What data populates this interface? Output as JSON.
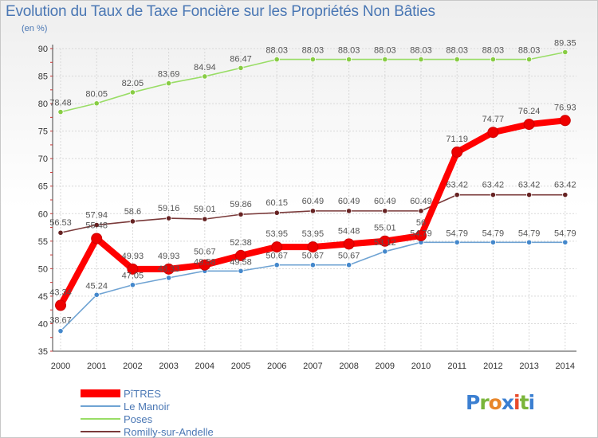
{
  "title": "Evolution du Taux de Taxe Foncière sur les Propriétés Non Bâties",
  "unit": "(en %)",
  "logo": "Proxiti",
  "chart_data": {
    "type": "line",
    "categories": [
      "2000",
      "2001",
      "2002",
      "2003",
      "2004",
      "2005",
      "2006",
      "2007",
      "2008",
      "2009",
      "2010",
      "2011",
      "2012",
      "2013",
      "2014"
    ],
    "ylim": [
      35,
      90
    ],
    "yticks": [
      35,
      40,
      45,
      50,
      55,
      60,
      65,
      70,
      75,
      80,
      85,
      90
    ],
    "series": [
      {
        "name": "Poses",
        "color": "#99dd66",
        "dot": "#88cc44",
        "values": [
          78.48,
          80.05,
          82.05,
          83.69,
          84.94,
          86.47,
          88.03,
          88.03,
          88.03,
          88.03,
          88.03,
          88.03,
          88.03,
          88.03,
          89.35
        ],
        "labels": [
          "78.48",
          "80.05",
          "82.05",
          "83.69",
          "84.94",
          "86.47",
          "88.03",
          "88.03",
          "88.03",
          "88.03",
          "88.03",
          "88.03",
          "88.03",
          "88.03",
          "89.35"
        ]
      },
      {
        "name": "Romilly-sur-Andelle",
        "color": "#7a3a3a",
        "dot": "#662222",
        "values": [
          56.53,
          57.94,
          58.6,
          59.16,
          59.01,
          59.86,
          60.15,
          60.49,
          60.49,
          60.49,
          60.49,
          63.42,
          63.42,
          63.42,
          63.42
        ],
        "labels": [
          "56.53",
          "57.94",
          "58.6",
          "59.16",
          "59.01",
          "59.86",
          "60.15",
          "60.49",
          "60.49",
          "60.49",
          "60.49",
          "63.42",
          "63.42",
          "63.42",
          "63.42"
        ]
      },
      {
        "name": "Le Manoir",
        "color": "#6fa3d3",
        "dot": "#4488cc",
        "values": [
          38.67,
          45.24,
          47.05,
          48.33,
          49.58,
          49.58,
          50.67,
          50.67,
          50.67,
          53.12,
          54.79,
          54.79,
          54.79,
          54.79,
          54.79
        ],
        "labels": [
          "38.67",
          "45.24",
          "47.05",
          "48.33",
          "49.58",
          "49.58",
          "50.67",
          "50.67",
          "50.67",
          "53.12",
          "54.79",
          "54.79",
          "54.79",
          "54.79",
          "54.79"
        ]
      },
      {
        "name": "PîTRES",
        "color": "#ff0000",
        "dot": "#ee0000",
        "values": [
          43.34,
          55.48,
          49.93,
          49.93,
          50.67,
          52.38,
          53.95,
          53.95,
          54.48,
          55.01,
          56.0,
          71.19,
          74.77,
          76.24,
          76.93
        ],
        "labels": [
          "43.34",
          "55.48",
          "49.93",
          "49.93",
          "50.67",
          "52.38",
          "53.95",
          "53.95",
          "54.48",
          "55.01",
          "56",
          "71.19",
          "74.77",
          "76.24",
          "76.93"
        ]
      }
    ],
    "legend_order": [
      "PîTRES",
      "Le Manoir",
      "Poses",
      "Romilly-sur-Andelle"
    ]
  }
}
